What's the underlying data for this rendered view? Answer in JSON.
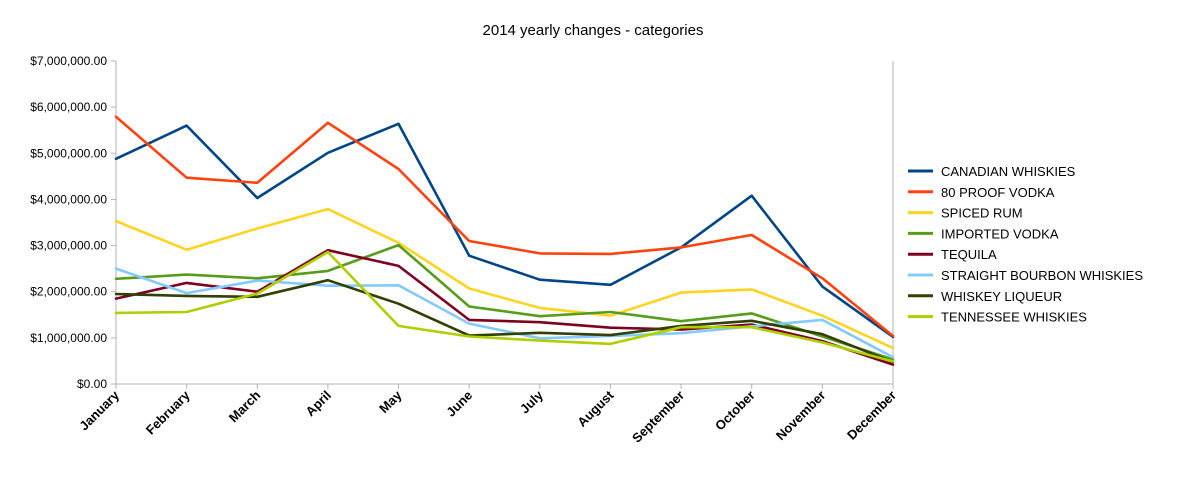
{
  "chart_data": {
    "type": "line",
    "title": "2014 yearly changes - categories",
    "xlabel": "",
    "ylabel": "",
    "ylim": [
      0,
      7000000
    ],
    "y_ticks": [
      "$0.00",
      "$1,000,000.00",
      "$2,000,000.00",
      "$3,000,000.00",
      "$4,000,000.00",
      "$5,000,000.00",
      "$6,000,000.00",
      "$7,000,000.00"
    ],
    "grid": false,
    "legend_position": "right",
    "categories": [
      "January",
      "February",
      "March",
      "April",
      "May",
      "June",
      "July",
      "August",
      "September",
      "October",
      "November",
      "December"
    ],
    "series": [
      {
        "name": "CANADIAN WHISKIES",
        "color": "#004586",
        "values": [
          4880000,
          5600000,
          4030000,
          5010000,
          5640000,
          2780000,
          2260000,
          2150000,
          2960000,
          4080000,
          2110000,
          1020000
        ]
      },
      {
        "name": "80 PROOF VODKA",
        "color": "#ff420e",
        "values": [
          5790000,
          4470000,
          4360000,
          5660000,
          4660000,
          3100000,
          2830000,
          2820000,
          2960000,
          3230000,
          2290000,
          1040000
        ]
      },
      {
        "name": "SPICED RUM",
        "color": "#ffd320",
        "values": [
          3530000,
          2910000,
          3370000,
          3790000,
          3060000,
          2070000,
          1650000,
          1480000,
          1980000,
          2050000,
          1480000,
          780000
        ]
      },
      {
        "name": "IMPORTED VODKA",
        "color": "#579d1c",
        "values": [
          2280000,
          2370000,
          2290000,
          2450000,
          3010000,
          1680000,
          1470000,
          1560000,
          1360000,
          1530000,
          1030000,
          530000
        ]
      },
      {
        "name": "TEQUILA",
        "color": "#7e0021",
        "values": [
          1850000,
          2190000,
          2000000,
          2900000,
          2560000,
          1390000,
          1340000,
          1220000,
          1180000,
          1290000,
          930000,
          420000
        ]
      },
      {
        "name": "STRAIGHT BOURBON WHISKIES",
        "color": "#83caff",
        "values": [
          2500000,
          1970000,
          2240000,
          2130000,
          2140000,
          1310000,
          990000,
          1040000,
          1100000,
          1250000,
          1390000,
          580000
        ]
      },
      {
        "name": "WHISKEY LIQUEUR",
        "color": "#314004",
        "values": [
          1950000,
          1910000,
          1890000,
          2250000,
          1740000,
          1050000,
          1110000,
          1060000,
          1260000,
          1370000,
          1080000,
          480000
        ]
      },
      {
        "name": "TENNESSEE WHISKIES",
        "color": "#aecf00",
        "values": [
          1540000,
          1560000,
          1960000,
          2860000,
          1260000,
          1030000,
          940000,
          870000,
          1230000,
          1230000,
          900000,
          490000
        ]
      }
    ]
  }
}
